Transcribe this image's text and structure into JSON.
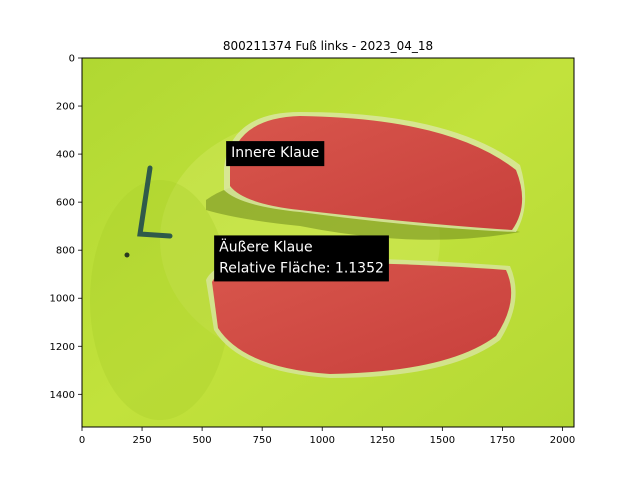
{
  "chart_data": {
    "type": "image",
    "title": "800211374 Fuß links - 2023_04_18",
    "xlabel": "",
    "ylabel": "",
    "xlim": [
      0,
      2048
    ],
    "ylim": [
      1536,
      0
    ],
    "x_ticks": [
      {
        "value": 0,
        "label": "0"
      },
      {
        "value": 250,
        "label": "250"
      },
      {
        "value": 500,
        "label": "500"
      },
      {
        "value": 750,
        "label": "750"
      },
      {
        "value": 1000,
        "label": "1000"
      },
      {
        "value": 1250,
        "label": "1250"
      },
      {
        "value": 1500,
        "label": "1500"
      },
      {
        "value": 1750,
        "label": "1750"
      },
      {
        "value": 2000,
        "label": "2000"
      }
    ],
    "y_ticks": [
      {
        "value": 0,
        "label": "0"
      },
      {
        "value": 200,
        "label": "200"
      },
      {
        "value": 400,
        "label": "400"
      },
      {
        "value": 600,
        "label": "600"
      },
      {
        "value": 800,
        "label": "800"
      },
      {
        "value": 1000,
        "label": "1000"
      },
      {
        "value": 1200,
        "label": "1200"
      },
      {
        "value": 1400,
        "label": "1400"
      }
    ],
    "annotations": [
      {
        "lines": [
          "Innere Klaue"
        ],
        "x": 600,
        "y": 450
      },
      {
        "lines": [
          "Äußere Klaue",
          "Relative Fläche: 1.1352"
        ],
        "x": 550,
        "y": 930
      }
    ],
    "colors": {
      "background_photo": "#b9dc36",
      "claw_overlay": "#d44a44",
      "annotation_box": "#000000",
      "annotation_text": "#ffffff"
    }
  }
}
